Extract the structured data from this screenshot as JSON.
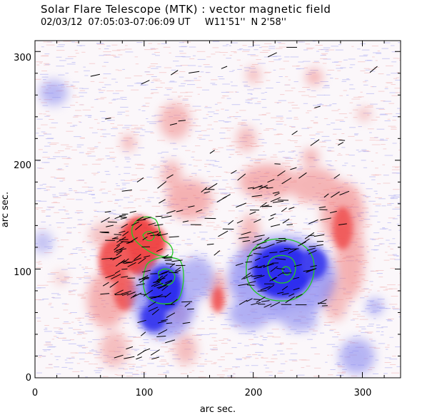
{
  "header": {
    "title": "Solar Flare Telescope (MTK) : vector magnetic field",
    "date": "02/03/12",
    "time_range": "07:05:03-07:06:09 UT",
    "lon": "W11'51''",
    "lat": "N 2'58''"
  },
  "axes": {
    "xlabel": "arc sec.",
    "ylabel": "arc sec.",
    "xlim": [
      0,
      335
    ],
    "ylim": [
      0,
      320
    ],
    "xticks": [
      "0",
      "100",
      "200",
      "300"
    ],
    "yticks": [
      "0",
      "100",
      "200",
      "300"
    ]
  },
  "colors": {
    "positive": "#ee2a2a",
    "negative": "#2424ee",
    "contour": "#22cc22",
    "background": "#ffffff"
  }
}
